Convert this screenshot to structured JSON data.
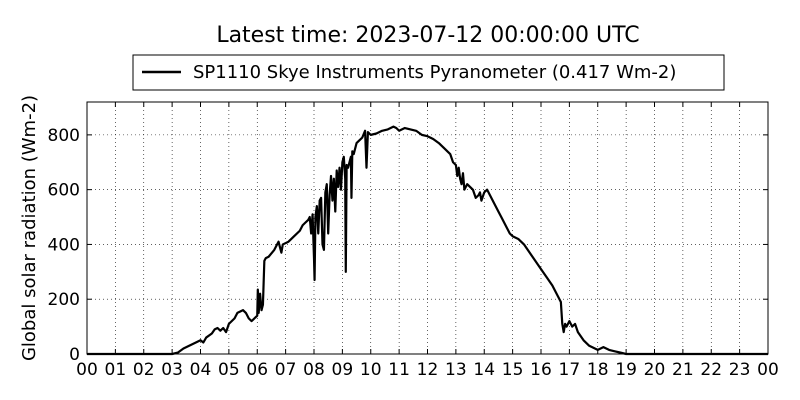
{
  "chart_data": {
    "type": "line",
    "title": "Latest time: 2023-07-12 00:00:00 UTC",
    "ylabel": "Global solar radiation (Wm-2)",
    "xlabel": "",
    "x_tick_labels": [
      "00",
      "01",
      "02",
      "03",
      "04",
      "05",
      "06",
      "07",
      "08",
      "09",
      "10",
      "11",
      "12",
      "13",
      "14",
      "15",
      "16",
      "17",
      "18",
      "19",
      "20",
      "21",
      "22",
      "23",
      "00"
    ],
    "y_ticks": [
      0,
      200,
      400,
      600,
      800
    ],
    "xlim": [
      0,
      24
    ],
    "ylim": [
      0,
      920
    ],
    "x_unit": "hours UTC",
    "grid": true,
    "legend_position": "top",
    "series": [
      {
        "name": "SP1110 Skye Instruments Pyranometer (0.417 Wm-2)",
        "color": "#000000",
        "points": [
          [
            0,
            0
          ],
          [
            3.0,
            0
          ],
          [
            3.2,
            5
          ],
          [
            3.4,
            20
          ],
          [
            3.7,
            35
          ],
          [
            3.9,
            45
          ],
          [
            4.0,
            50
          ],
          [
            4.1,
            42
          ],
          [
            4.2,
            60
          ],
          [
            4.4,
            75
          ],
          [
            4.5,
            90
          ],
          [
            4.6,
            95
          ],
          [
            4.7,
            85
          ],
          [
            4.8,
            95
          ],
          [
            4.9,
            80
          ],
          [
            5.0,
            110
          ],
          [
            5.2,
            130
          ],
          [
            5.3,
            150
          ],
          [
            5.5,
            160
          ],
          [
            5.6,
            150
          ],
          [
            5.7,
            130
          ],
          [
            5.8,
            120
          ],
          [
            5.9,
            130
          ],
          [
            6.0,
            140
          ],
          [
            6.02,
            235
          ],
          [
            6.05,
            150
          ],
          [
            6.1,
            220
          ],
          [
            6.15,
            160
          ],
          [
            6.2,
            180
          ],
          [
            6.25,
            340
          ],
          [
            6.3,
            350
          ],
          [
            6.4,
            355
          ],
          [
            6.6,
            380
          ],
          [
            6.7,
            400
          ],
          [
            6.75,
            410
          ],
          [
            6.8,
            390
          ],
          [
            6.85,
            370
          ],
          [
            6.9,
            400
          ],
          [
            7.1,
            410
          ],
          [
            7.3,
            430
          ],
          [
            7.5,
            450
          ],
          [
            7.6,
            470
          ],
          [
            7.7,
            480
          ],
          [
            7.8,
            490
          ],
          [
            7.85,
            500
          ],
          [
            7.9,
            440
          ],
          [
            7.95,
            510
          ],
          [
            8.0,
            350
          ],
          [
            8.02,
            270
          ],
          [
            8.05,
            500
          ],
          [
            8.1,
            540
          ],
          [
            8.15,
            440
          ],
          [
            8.2,
            560
          ],
          [
            8.25,
            570
          ],
          [
            8.3,
            400
          ],
          [
            8.35,
            380
          ],
          [
            8.4,
            590
          ],
          [
            8.45,
            620
          ],
          [
            8.5,
            440
          ],
          [
            8.55,
            580
          ],
          [
            8.6,
            650
          ],
          [
            8.65,
            560
          ],
          [
            8.7,
            640
          ],
          [
            8.75,
            520
          ],
          [
            8.8,
            670
          ],
          [
            8.85,
            610
          ],
          [
            8.9,
            680
          ],
          [
            8.95,
            600
          ],
          [
            9.0,
            700
          ],
          [
            9.05,
            720
          ],
          [
            9.1,
            640
          ],
          [
            9.12,
            300
          ],
          [
            9.15,
            690
          ],
          [
            9.2,
            680
          ],
          [
            9.25,
            700
          ],
          [
            9.3,
            720
          ],
          [
            9.32,
            570
          ],
          [
            9.35,
            740
          ],
          [
            9.4,
            730
          ],
          [
            9.5,
            770
          ],
          [
            9.6,
            780
          ],
          [
            9.7,
            790
          ],
          [
            9.8,
            815
          ],
          [
            9.85,
            680
          ],
          [
            9.9,
            810
          ],
          [
            10.0,
            800
          ],
          [
            10.2,
            805
          ],
          [
            10.4,
            815
          ],
          [
            10.6,
            820
          ],
          [
            10.8,
            830
          ],
          [
            10.9,
            825
          ],
          [
            11.0,
            815
          ],
          [
            11.2,
            825
          ],
          [
            11.4,
            820
          ],
          [
            11.6,
            815
          ],
          [
            11.8,
            800
          ],
          [
            12.0,
            795
          ],
          [
            12.2,
            785
          ],
          [
            12.4,
            770
          ],
          [
            12.6,
            750
          ],
          [
            12.8,
            730
          ],
          [
            12.9,
            700
          ],
          [
            13.0,
            690
          ],
          [
            13.05,
            650
          ],
          [
            13.1,
            680
          ],
          [
            13.15,
            640
          ],
          [
            13.2,
            620
          ],
          [
            13.25,
            660
          ],
          [
            13.3,
            600
          ],
          [
            13.4,
            620
          ],
          [
            13.5,
            610
          ],
          [
            13.6,
            600
          ],
          [
            13.7,
            570
          ],
          [
            13.8,
            580
          ],
          [
            13.85,
            590
          ],
          [
            13.9,
            560
          ],
          [
            14.0,
            590
          ],
          [
            14.1,
            600
          ],
          [
            14.2,
            580
          ],
          [
            14.3,
            560
          ],
          [
            14.4,
            540
          ],
          [
            14.5,
            520
          ],
          [
            14.6,
            500
          ],
          [
            14.7,
            480
          ],
          [
            14.8,
            460
          ],
          [
            14.9,
            440
          ],
          [
            15.0,
            430
          ],
          [
            15.2,
            420
          ],
          [
            15.4,
            400
          ],
          [
            15.6,
            370
          ],
          [
            15.8,
            340
          ],
          [
            16.0,
            310
          ],
          [
            16.2,
            280
          ],
          [
            16.4,
            250
          ],
          [
            16.6,
            210
          ],
          [
            16.7,
            190
          ],
          [
            16.75,
            110
          ],
          [
            16.8,
            80
          ],
          [
            16.85,
            110
          ],
          [
            16.9,
            100
          ],
          [
            17.0,
            120
          ],
          [
            17.1,
            100
          ],
          [
            17.2,
            110
          ],
          [
            17.3,
            80
          ],
          [
            17.5,
            50
          ],
          [
            17.7,
            30
          ],
          [
            17.9,
            20
          ],
          [
            18.0,
            15
          ],
          [
            18.2,
            25
          ],
          [
            18.4,
            15
          ],
          [
            18.6,
            10
          ],
          [
            18.8,
            5
          ],
          [
            19.0,
            0
          ],
          [
            24,
            0
          ]
        ]
      }
    ]
  }
}
